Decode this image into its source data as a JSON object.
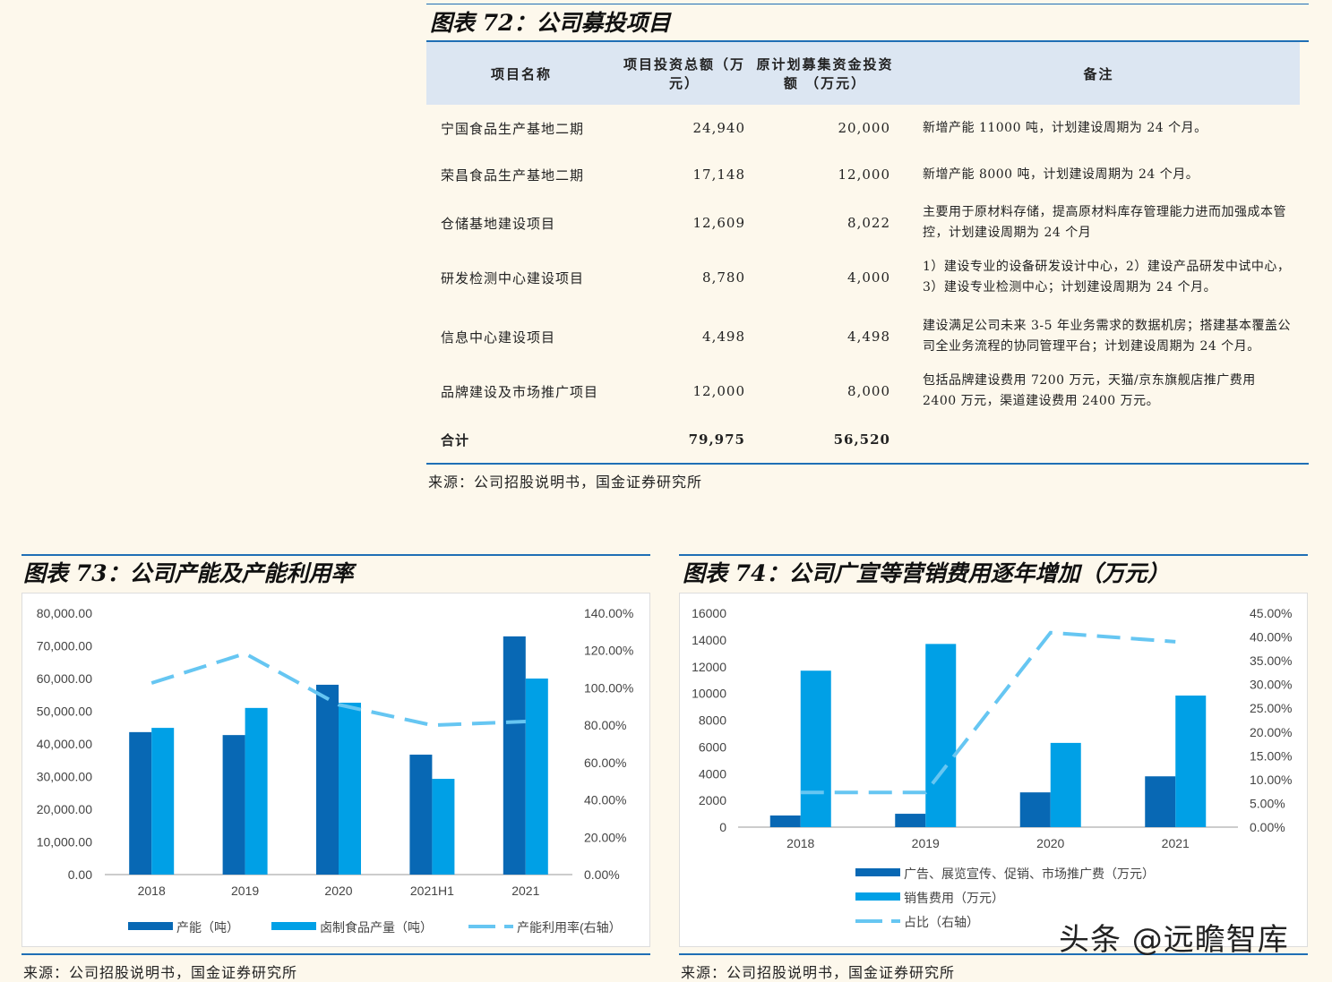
{
  "table72": {
    "title": "图表 72：公司募投项目",
    "headers": [
      "项目名称",
      "项目投资总额（万元）",
      "原计划募集资金投资额 （万元）",
      "备注"
    ],
    "rows": [
      [
        "宁国食品生产基地二期",
        "24,940",
        "20,000",
        "新增产能 11000 吨，计划建设周期为 24 个月。"
      ],
      [
        "荣昌食品生产基地二期",
        "17,148",
        "12,000",
        "新增产能 8000 吨，计划建设周期为 24 个月。"
      ],
      [
        "仓储基地建设项目",
        "12,609",
        "8,022",
        "主要用于原材料存储，提高原材料库存管理能力进而加强成本管控，计划建设周期为 24 个月"
      ],
      [
        "研发检测中心建设项目",
        "8,780",
        "4,000",
        "1）建设专业的设备研发设计中心，2）建设产品研发中试中心，3）建设专业检测中心；计划建设周期为 24 个月。"
      ],
      [
        "信息中心建设项目",
        "4,498",
        "4,498",
        "建设满足公司未来 3-5 年业务需求的数据机房；搭建基本覆盖公司全业务流程的协同管理平台；计划建设周期为 24 个月。"
      ],
      [
        "品牌建设及市场推广项目",
        "12,000",
        "8,000",
        "包括品牌建设费用 7200 万元，天猫/京东旗舰店推广费用 2400 万元，渠道建设费用 2400 万元。"
      ]
    ],
    "total": [
      "合计",
      "79,975",
      "56,520",
      ""
    ],
    "source": "来源：公司招股说明书，国金证券研究所"
  },
  "colors": {
    "dark": "#0868b4",
    "light": "#00a0e6",
    "line": "#66c6f2",
    "accent": "#1f6fb5"
  },
  "chart_data": [
    {
      "type": "bar",
      "title": "图表 73：公司产能及产能利用率",
      "categories": [
        "2018",
        "2019",
        "2020",
        "2021H1",
        "2021"
      ],
      "series": [
        {
          "name": "产能（吨）",
          "axis": "left",
          "values": [
            43600,
            42700,
            58100,
            36700,
            72900
          ]
        },
        {
          "name": "卤制食品产量（吨）",
          "axis": "left",
          "values": [
            44900,
            51000,
            52600,
            29300,
            60000
          ]
        },
        {
          "name": "产能利用率(右轴）",
          "axis": "right",
          "type": "line",
          "values": [
            102.6,
            118.4,
            91,
            80,
            82
          ]
        }
      ],
      "ylim": [
        0,
        80000
      ],
      "yticks": [
        "0.00",
        "10,000.00",
        "20,000.00",
        "30,000.00",
        "40,000.00",
        "50,000.00",
        "60,000.00",
        "70,000.00",
        "80,000.00"
      ],
      "y2lim": [
        0,
        140
      ],
      "y2ticks": [
        "0.00%",
        "20.00%",
        "40.00%",
        "60.00%",
        "80.00%",
        "100.00%",
        "120.00%",
        "140.00%"
      ],
      "legend": "bottom",
      "source": "来源：公司招股说明书，国金证券研究所"
    },
    {
      "type": "bar",
      "title": "图表 74：公司广宣等营销费用逐年增加（万元）",
      "categories": [
        "2018",
        "2019",
        "2020",
        "2021"
      ],
      "series": [
        {
          "name": "广告、展览宣传、促销、市场推广费（万元）",
          "axis": "left",
          "values": [
            870,
            1000,
            2600,
            3800
          ]
        },
        {
          "name": "销售费用（万元）",
          "axis": "left",
          "values": [
            11700,
            13700,
            6300,
            9840
          ]
        },
        {
          "name": "占比（右轴）",
          "axis": "right",
          "type": "line",
          "values": [
            7.3,
            7.3,
            40.9,
            39
          ]
        }
      ],
      "ylim": [
        0,
        16000
      ],
      "yticks": [
        "0",
        "2000",
        "4000",
        "6000",
        "8000",
        "10000",
        "12000",
        "14000",
        "16000"
      ],
      "y2lim": [
        0,
        45
      ],
      "y2ticks": [
        "0.00%",
        "5.00%",
        "10.00%",
        "15.00%",
        "20.00%",
        "25.00%",
        "30.00%",
        "35.00%",
        "40.00%",
        "45.00%"
      ],
      "legend": "bottom",
      "source": "来源：公司招股说明书，国金证券研究所"
    }
  ],
  "watermark": "头条 @远瞻智库"
}
